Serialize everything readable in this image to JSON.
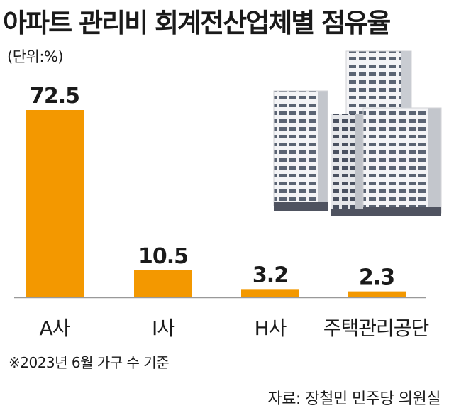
{
  "title": "아파트 관리비 회계전산업체별 점유율",
  "unit_label": "(단위:%)",
  "note": "※2023년 6월 가구 수 기준",
  "source": "자료: 장철민 민주당 의원실",
  "colors": {
    "bar": "#F39800",
    "axis": "#999999",
    "text": "#1a1a1a"
  },
  "illustration": "apartment-buildings",
  "chart_data": {
    "type": "bar",
    "categories": [
      "A사",
      "I사",
      "H사",
      "주택관리공단"
    ],
    "values": [
      72.5,
      10.5,
      3.2,
      2.3
    ],
    "value_labels": [
      "72.5",
      "10.5",
      "3.2",
      "2.3"
    ],
    "title": "아파트 관리비 회계전산업체별 점유율",
    "xlabel": "",
    "ylabel": "",
    "ylim": [
      0,
      72.5
    ],
    "grid": false,
    "legend": "none"
  }
}
